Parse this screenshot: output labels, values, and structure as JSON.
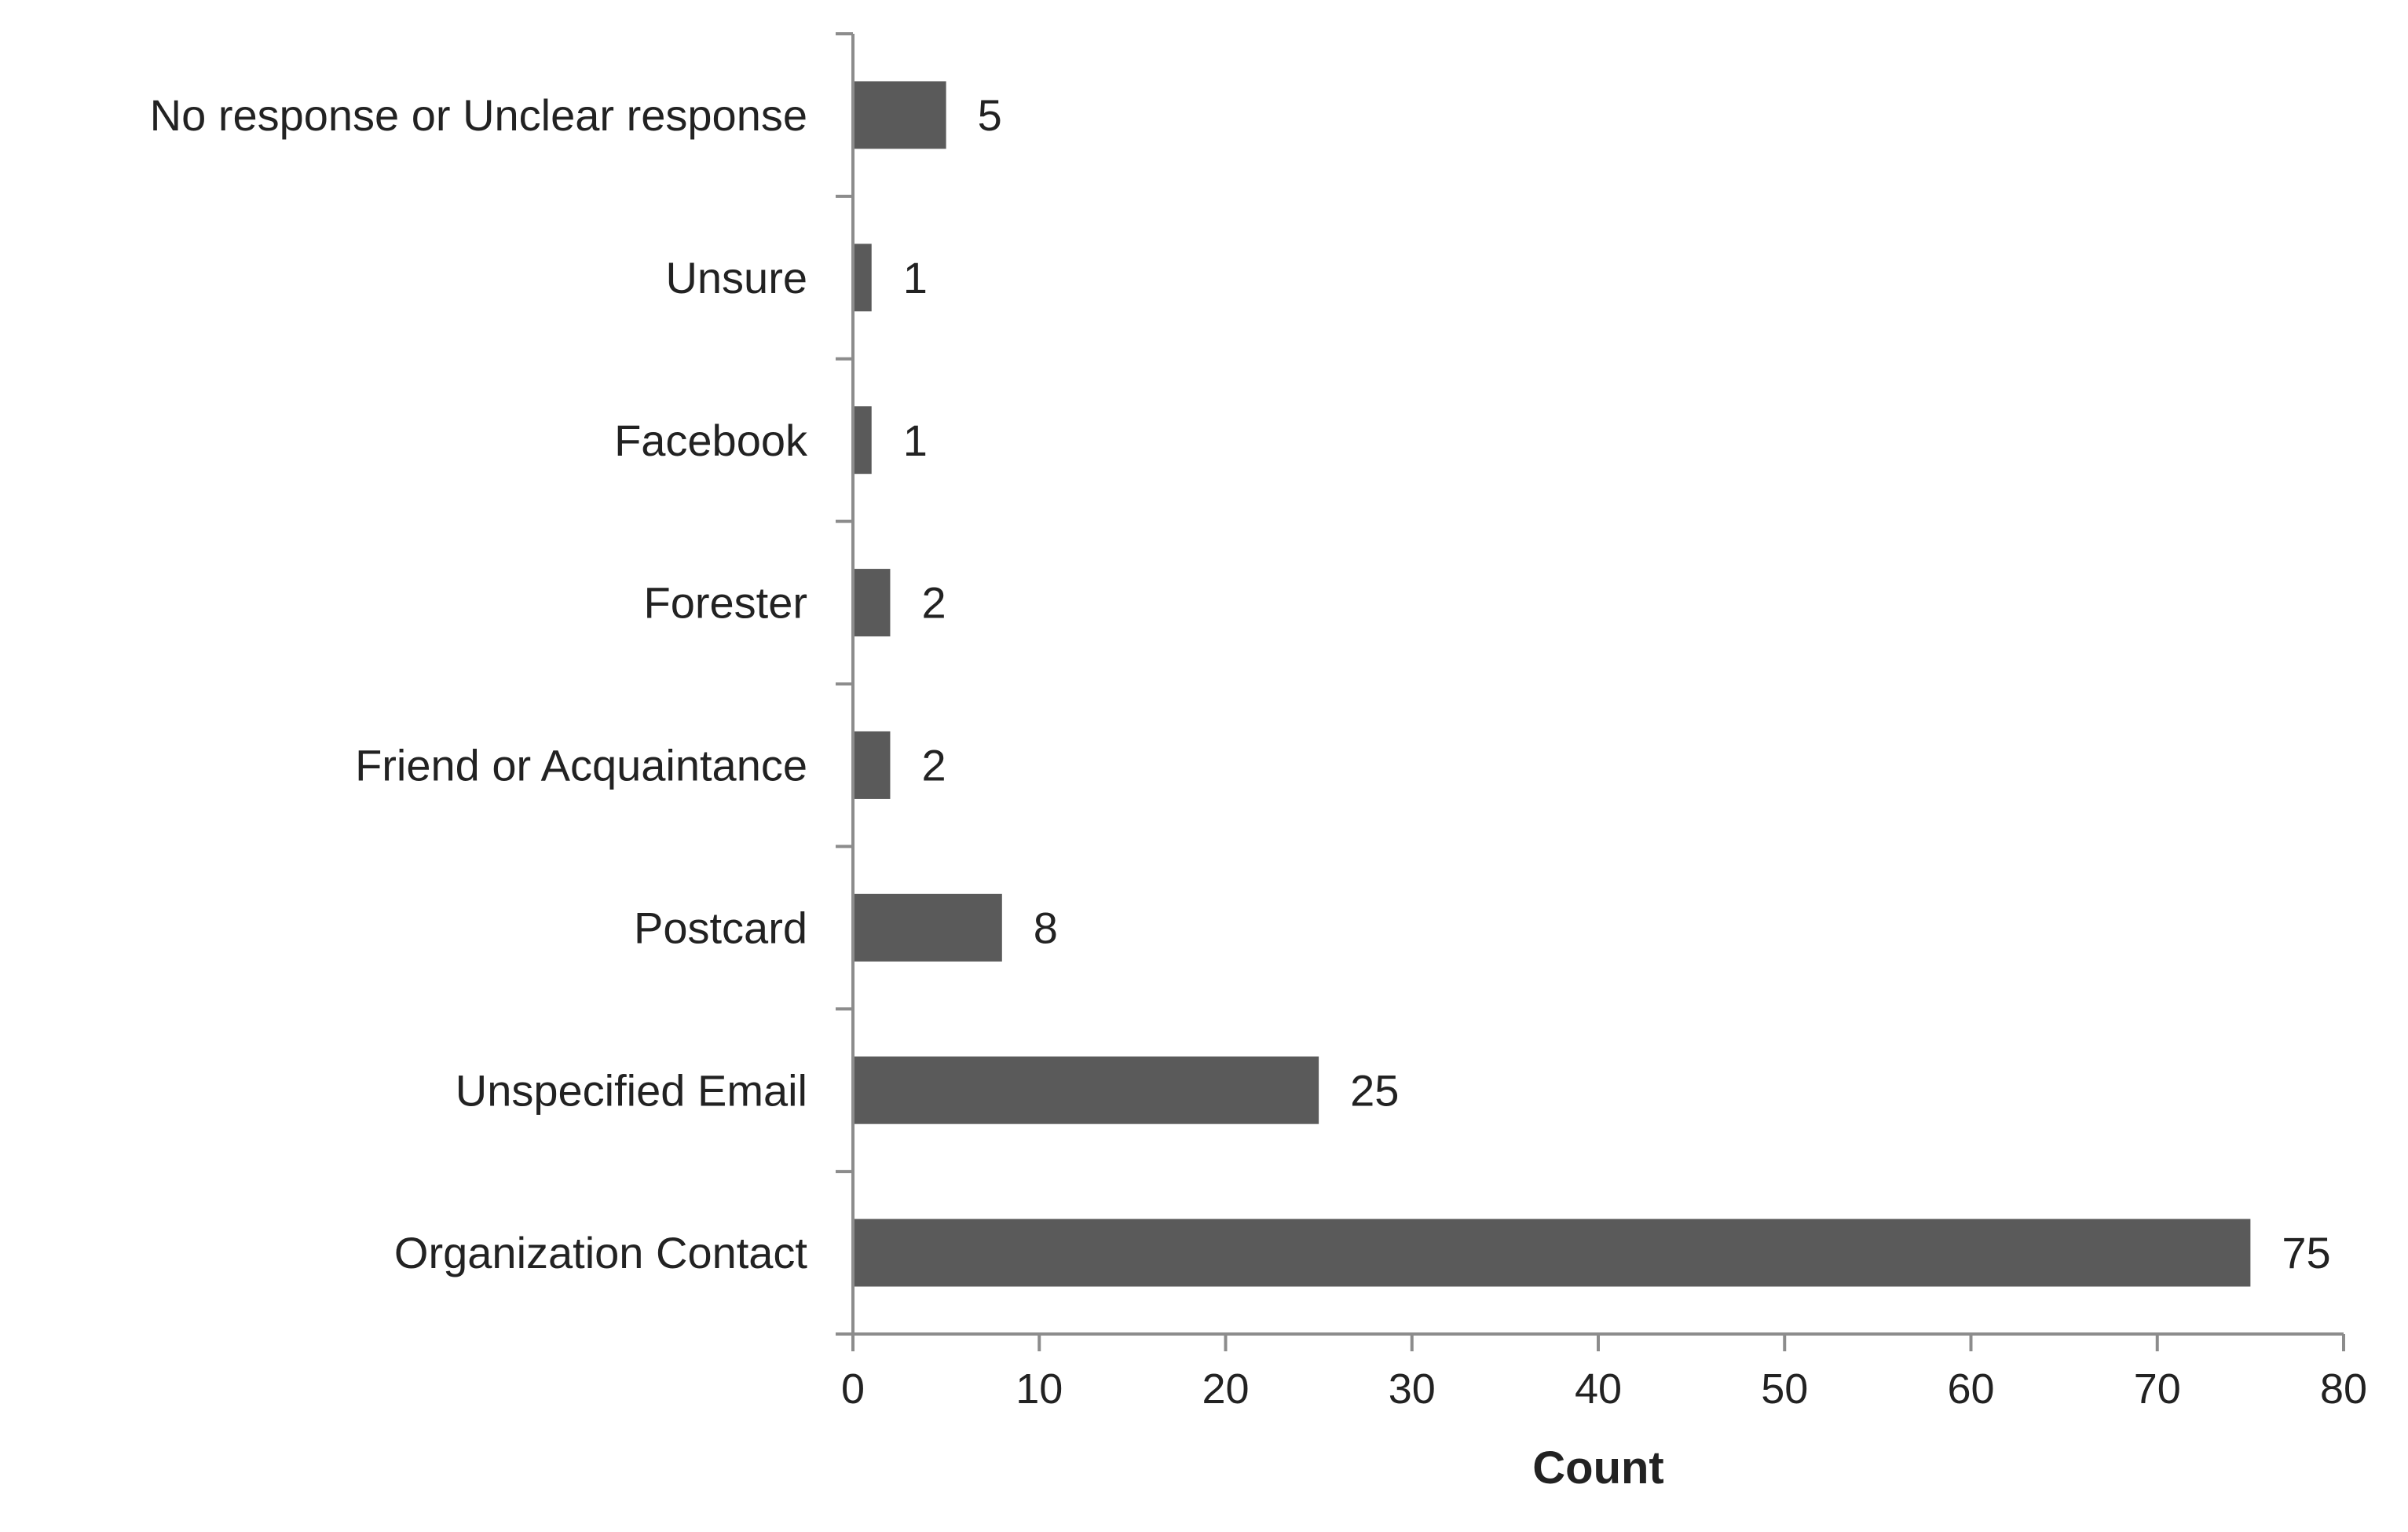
{
  "chart_data": {
    "type": "bar",
    "orientation": "horizontal",
    "categories": [
      "No response or Unclear response",
      "Unsure",
      "Facebook",
      "Forester",
      "Friend or Acquaintance",
      "Postcard",
      "Unspecified Email",
      "Organization Contact"
    ],
    "values": [
      5,
      1,
      1,
      2,
      2,
      8,
      25,
      75
    ],
    "data_labels": [
      "5",
      "1",
      "1",
      "2",
      "2",
      "8",
      "25",
      "75"
    ],
    "title": "",
    "xlabel": "Count",
    "ylabel": "",
    "xlim": [
      0,
      80
    ],
    "xticks": [
      0,
      10,
      20,
      30,
      40,
      50,
      60,
      70,
      80
    ],
    "xtick_labels": [
      "0",
      "10",
      "20",
      "30",
      "40",
      "50",
      "60",
      "70",
      "80"
    ],
    "grid": false,
    "legend": "none",
    "colors": {
      "bar": "#5a5a5a",
      "axis": "#8c8c8c",
      "text": "#222222"
    }
  }
}
